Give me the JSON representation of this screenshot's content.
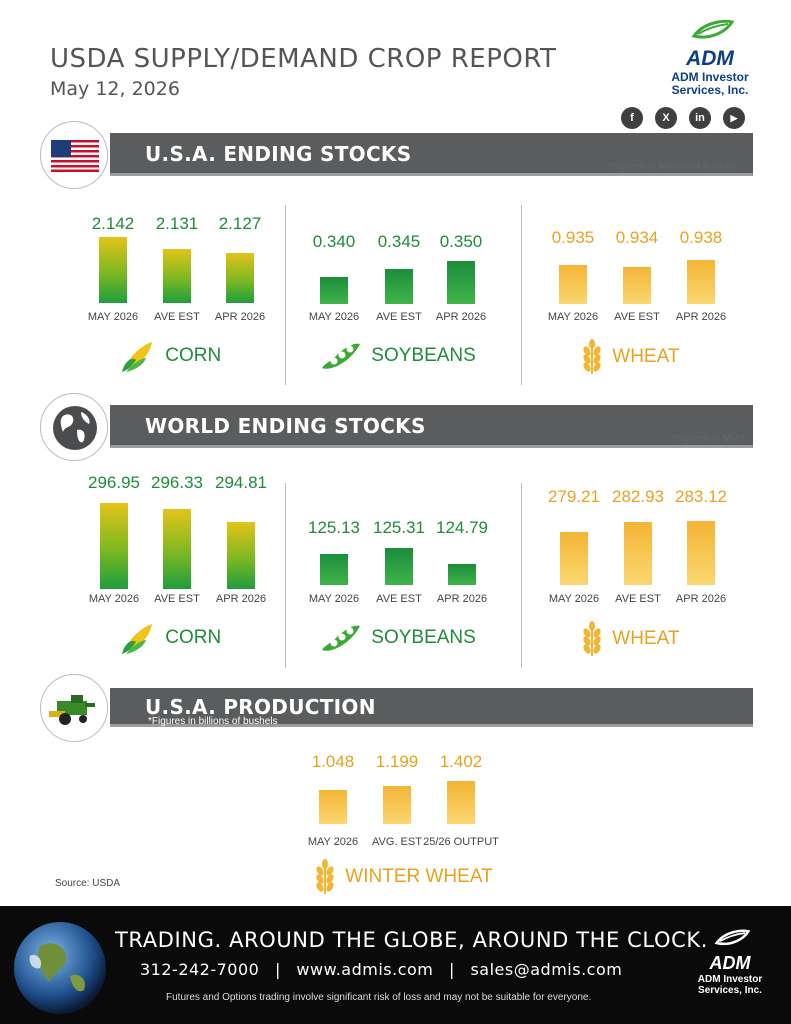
{
  "header": {
    "title": "USDA SUPPLY/DEMAND CROP REPORT",
    "date": "May 12, 2026"
  },
  "logo": {
    "name": "ADM",
    "sub1": "ADM Investor",
    "sub2": "Services, Inc."
  },
  "social": [
    {
      "icon": "facebook-icon",
      "glyph": "f"
    },
    {
      "icon": "x-icon",
      "glyph": "X"
    },
    {
      "icon": "linkedin-icon",
      "glyph": "in"
    },
    {
      "icon": "youtube-icon",
      "glyph": "▶"
    }
  ],
  "sections": {
    "usa_ending": {
      "title": "U.S.A. ENDING STOCKS",
      "note": "*Figures in billions of bushels",
      "badge_icon": "us-flag-icon"
    },
    "world_ending": {
      "title": "WORLD ENDING STOCKS",
      "note": "*Figures in MMT",
      "badge_icon": "globe-icon"
    },
    "usa_production": {
      "title": "U.S.A. PRODUCTION",
      "note": "*Figures in billions of bushels",
      "badge_icon": "combine-harvester-icon"
    }
  },
  "crops": {
    "corn": "CORN",
    "soybeans": "SOYBEANS",
    "wheat": "WHEAT",
    "winter_wheat": "WINTER WHEAT"
  },
  "colors": {
    "corn_value": "#1e8c3a",
    "soy_value": "#1e8c3a",
    "wheat_value": "#e8a21e",
    "banner": "#5a5c5e"
  },
  "chart_data": [
    {
      "type": "bar",
      "id": "usa_corn",
      "categories": [
        "MAY 2026",
        "AVE EST",
        "APR 2026"
      ],
      "values": [
        2.142,
        2.131,
        2.127
      ],
      "labels": [
        "2.142",
        "2.131",
        "2.127"
      ],
      "scale_max": 2.142,
      "min_height_frac": 0.25
    },
    {
      "type": "bar",
      "id": "usa_soy",
      "categories": [
        "MAY 2026",
        "AVE EST",
        "APR 2026"
      ],
      "values": [
        0.34,
        0.345,
        0.35
      ],
      "labels": [
        "0.340",
        "0.345",
        "0.350"
      ]
    },
    {
      "type": "bar",
      "id": "usa_wheat",
      "categories": [
        "MAY 2026",
        "AVE EST",
        "APR 2026"
      ],
      "values": [
        0.935,
        0.934,
        0.938
      ],
      "labels": [
        "0.935",
        "0.934",
        "0.938"
      ]
    },
    {
      "type": "bar",
      "id": "world_corn",
      "categories": [
        "MAY 2026",
        "AVE EST",
        "APR 2026"
      ],
      "values": [
        296.95,
        296.33,
        294.81
      ],
      "labels": [
        "296.95",
        "296.33",
        "294.81"
      ]
    },
    {
      "type": "bar",
      "id": "world_soy",
      "categories": [
        "MAY 2026",
        "AVE EST",
        "APR 2026"
      ],
      "values": [
        125.13,
        125.31,
        124.79
      ],
      "labels": [
        "125.13",
        "125.31",
        "124.79"
      ]
    },
    {
      "type": "bar",
      "id": "world_wheat",
      "categories": [
        "MAY 2026",
        "AVE EST",
        "APR 2026"
      ],
      "values": [
        279.21,
        282.93,
        283.12
      ],
      "labels": [
        "279.21",
        "282.93",
        "283.12"
      ]
    },
    {
      "type": "bar",
      "id": "usa_winter_wheat",
      "categories": [
        "MAY 2026",
        "AVG. EST",
        "25/26 OUTPUT"
      ],
      "values": [
        1.048,
        1.199,
        1.402
      ],
      "labels": [
        "1.048",
        "1.199",
        "1.402"
      ]
    }
  ],
  "source": "Source: USDA",
  "footer": {
    "tagline": "TRADING. AROUND THE GLOBE, AROUND THE CLOCK.",
    "phone": "312-242-7000",
    "web": "www.admis.com",
    "email": "sales@admis.com",
    "sep": "|",
    "disclaimer": "Futures and Options trading involve significant risk of loss and may not be suitable for everyone.",
    "logo_name": "ADM",
    "logo_sub1": "ADM Investor",
    "logo_sub2": "Services, Inc."
  }
}
